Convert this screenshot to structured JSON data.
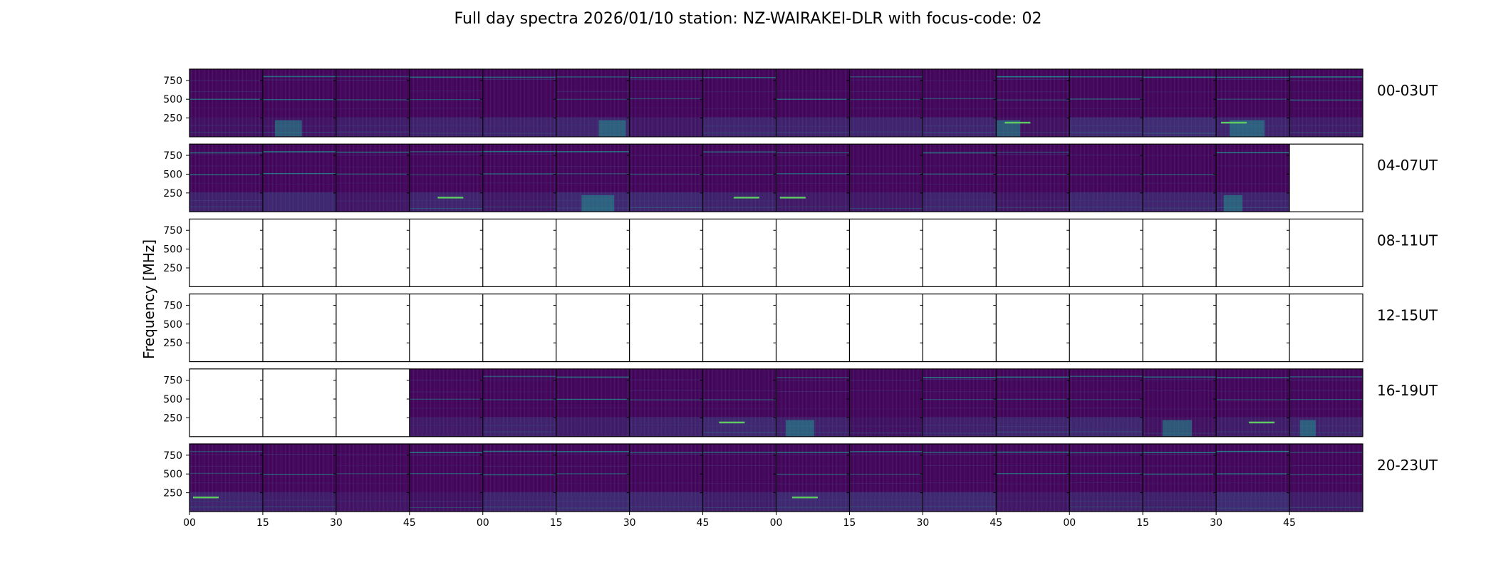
{
  "chart_data": {
    "type": "heatmap",
    "title": "Full day spectra 2026/01/10 station: NZ-WAIRAKEI-DLR with focus-code: 02",
    "ylabel": "Frequency [MHz]",
    "xlabel": "",
    "ylim": [
      0,
      900
    ],
    "yticks": [
      750,
      500,
      250
    ],
    "xtick_labels": [
      "00",
      "15",
      "30",
      "45",
      "00",
      "15",
      "30",
      "45",
      "00",
      "15",
      "30",
      "45",
      "00",
      "15",
      "30",
      "45"
    ],
    "colormap": "viridis",
    "panels_per_row": 16,
    "rows": [
      {
        "label": "00-03UT",
        "panels": [
          1,
          1,
          1,
          1,
          1,
          1,
          1,
          1,
          1,
          1,
          1,
          1,
          1,
          1,
          1,
          1
        ]
      },
      {
        "label": "04-07UT",
        "panels": [
          1,
          1,
          1,
          1,
          1,
          1,
          1,
          1,
          1,
          1,
          1,
          1,
          1,
          1,
          1,
          0
        ]
      },
      {
        "label": "08-11UT",
        "panels": [
          0,
          0,
          0,
          0,
          0,
          0,
          0,
          0,
          0,
          0,
          0,
          0,
          0,
          0,
          0,
          0
        ]
      },
      {
        "label": "12-15UT",
        "panels": [
          0,
          0,
          0,
          0,
          0,
          0,
          0,
          0,
          0,
          0,
          0,
          0,
          0,
          0,
          0,
          0
        ]
      },
      {
        "label": "16-19UT",
        "panels": [
          0,
          0,
          0,
          1,
          1,
          1,
          1,
          1,
          1,
          1,
          1,
          1,
          1,
          1,
          1,
          1
        ]
      },
      {
        "label": "20-23UT",
        "panels": [
          1,
          1,
          1,
          1,
          1,
          1,
          1,
          1,
          1,
          1,
          1,
          1,
          1,
          1,
          1,
          1
        ]
      }
    ]
  },
  "colors": {
    "background": "#ffffff",
    "axis": "#000000",
    "spectrum_base": "#46085c",
    "spectrum_dark": "#440154",
    "band_mid": "#3b528b",
    "band_bright": "#21918c",
    "band_hot": "#5ec962"
  }
}
